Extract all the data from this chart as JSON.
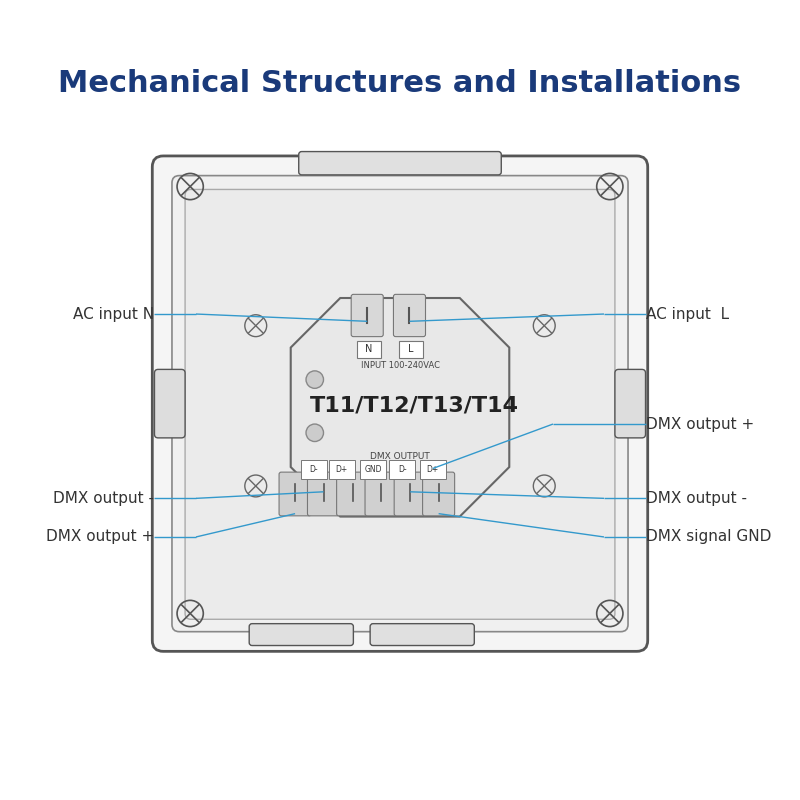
{
  "title": "Mechanical Structures and Installations",
  "title_color": "#1a3a7a",
  "title_fontsize": 22,
  "bg_color": "#ffffff",
  "line_color": "#555555",
  "annotation_color": "#3399cc",
  "annotation_fontsize": 11,
  "device_label": "T11/T12/T13/T14",
  "device_label_fontsize": 16,
  "input_label": "INPUT 100-240VAC",
  "dmx_output_label": "DMX OUTPUT",
  "nl_labels": [
    "N",
    "L"
  ],
  "dmx_terminal_labels": [
    "D-",
    "D+",
    "GND",
    "D-",
    "D+"
  ]
}
